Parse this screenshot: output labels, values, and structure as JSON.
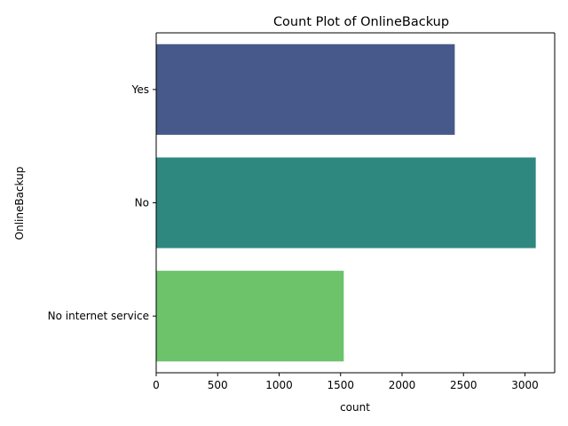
{
  "chart_data": {
    "type": "bar",
    "orientation": "horizontal",
    "title": "Count Plot of OnlineBackup",
    "xlabel": "count",
    "ylabel": "OnlineBackup",
    "categories": [
      "Yes",
      "No",
      "No internet service"
    ],
    "values": [
      2429,
      3088,
      1526
    ],
    "colors": [
      "#46598a",
      "#2e8880",
      "#6cc36a"
    ],
    "xlim": [
      0,
      3242
    ],
    "xticks": [
      0,
      500,
      1000,
      1500,
      2000,
      2500,
      3000
    ],
    "grid": false,
    "legend": "none"
  }
}
